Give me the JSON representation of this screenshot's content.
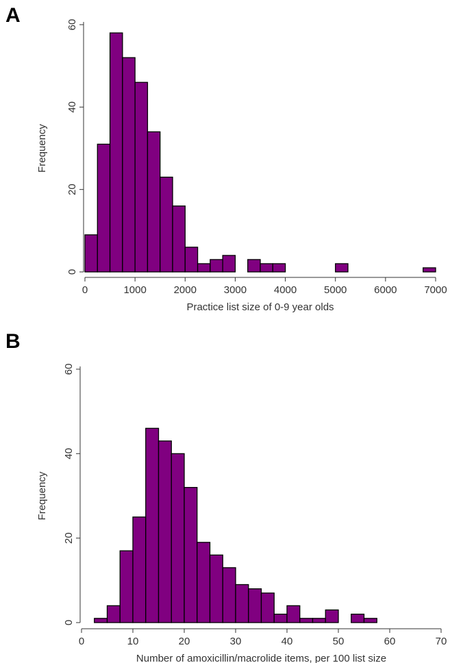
{
  "figure": {
    "panel_a_label": "A",
    "panel_b_label": "B",
    "bar_color": "#800080",
    "bar_edge": "#000000"
  },
  "chart_data": [
    {
      "type": "bar",
      "panel": "A",
      "title": "",
      "xlabel": "Practice list size of 0-9 year olds",
      "ylabel": "Frequency",
      "bin_width": 250,
      "xlim": [
        0,
        7000
      ],
      "ylim": [
        0,
        60
      ],
      "xticks": [
        "0",
        "1000",
        "2000",
        "3000",
        "4000",
        "5000",
        "6000",
        "7000"
      ],
      "yticks": [
        "0",
        "20",
        "40",
        "60"
      ],
      "bins": [
        {
          "start": 0,
          "count": 9
        },
        {
          "start": 250,
          "count": 31
        },
        {
          "start": 500,
          "count": 58
        },
        {
          "start": 750,
          "count": 52
        },
        {
          "start": 1000,
          "count": 46
        },
        {
          "start": 1250,
          "count": 34
        },
        {
          "start": 1500,
          "count": 23
        },
        {
          "start": 1750,
          "count": 16
        },
        {
          "start": 2000,
          "count": 6
        },
        {
          "start": 2250,
          "count": 2
        },
        {
          "start": 2500,
          "count": 3
        },
        {
          "start": 2750,
          "count": 4
        },
        {
          "start": 3250,
          "count": 3
        },
        {
          "start": 3500,
          "count": 2
        },
        {
          "start": 3750,
          "count": 2
        },
        {
          "start": 5000,
          "count": 2
        },
        {
          "start": 6750,
          "count": 1
        }
      ]
    },
    {
      "type": "bar",
      "panel": "B",
      "title": "",
      "xlabel": "Number of amoxicillin/macrolide items, per 100 list size",
      "ylabel": "Frequency",
      "bin_width": 2.5,
      "xlim": [
        0,
        70
      ],
      "ylim": [
        0,
        60
      ],
      "xticks": [
        "0",
        "10",
        "20",
        "30",
        "40",
        "50",
        "60",
        "70"
      ],
      "yticks": [
        "0",
        "20",
        "40",
        "60"
      ],
      "bins": [
        {
          "start": 2.5,
          "count": 1
        },
        {
          "start": 5,
          "count": 4
        },
        {
          "start": 7.5,
          "count": 17
        },
        {
          "start": 10,
          "count": 25
        },
        {
          "start": 12.5,
          "count": 46
        },
        {
          "start": 15,
          "count": 43
        },
        {
          "start": 17.5,
          "count": 40
        },
        {
          "start": 20,
          "count": 32
        },
        {
          "start": 22.5,
          "count": 19
        },
        {
          "start": 25,
          "count": 16
        },
        {
          "start": 27.5,
          "count": 13
        },
        {
          "start": 30,
          "count": 9
        },
        {
          "start": 32.5,
          "count": 8
        },
        {
          "start": 35,
          "count": 7
        },
        {
          "start": 37.5,
          "count": 2
        },
        {
          "start": 40,
          "count": 4
        },
        {
          "start": 42.5,
          "count": 1
        },
        {
          "start": 45,
          "count": 1
        },
        {
          "start": 47.5,
          "count": 3
        },
        {
          "start": 52.5,
          "count": 2
        },
        {
          "start": 55,
          "count": 1
        }
      ]
    }
  ]
}
